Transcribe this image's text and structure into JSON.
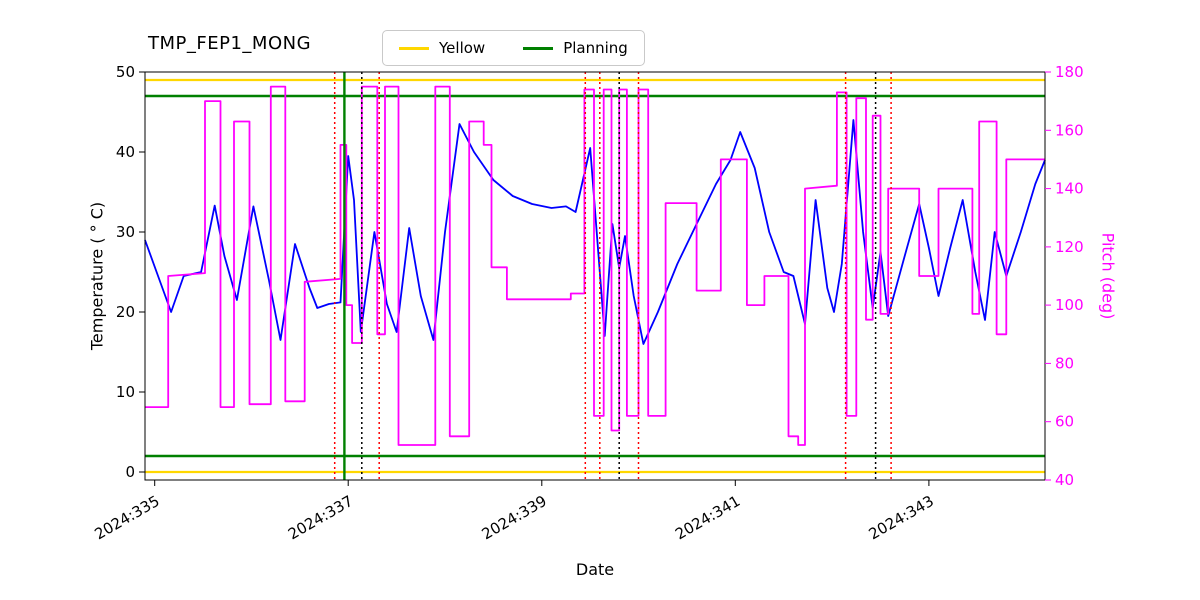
{
  "chart_data": {
    "type": "line",
    "title": "TMP_FEP1_MONG",
    "xlabel": "Date",
    "ylabel_left": "Temperature ( ° C)",
    "ylabel_right": "Pitch (deg)",
    "xlim": [
      334.9,
      344.2
    ],
    "ylim_left": [
      -1,
      50
    ],
    "ylim_right": [
      40,
      180
    ],
    "x_ticks": [
      335,
      337,
      339,
      341,
      343
    ],
    "x_tick_labels": [
      "2024:335",
      "2024:337",
      "2024:339",
      "2024:341",
      "2024:343"
    ],
    "y_ticks_left": [
      0,
      10,
      20,
      30,
      40,
      50
    ],
    "y_ticks_right": [
      40,
      60,
      80,
      100,
      120,
      140,
      160,
      180
    ],
    "legend": [
      {
        "label": "Yellow",
        "color": "#ffd700"
      },
      {
        "label": "Planning",
        "color": "#008000"
      }
    ],
    "colors": {
      "temperature": "#0000ff",
      "pitch": "#ff00ff",
      "yellow_limit": "#ffd700",
      "planning_limit": "#008000",
      "red_marker": "#ff0000",
      "black_marker": "#000000"
    },
    "hlines": [
      {
        "y": 49,
        "color": "#ffd700",
        "width": 2.2,
        "name": "yellow-high-limit"
      },
      {
        "y": 0,
        "color": "#ffd700",
        "width": 2.2,
        "name": "yellow-low-limit"
      },
      {
        "y": 47,
        "color": "#008000",
        "width": 2.6,
        "name": "planning-high-limit"
      },
      {
        "y": 2,
        "color": "#008000",
        "width": 2.6,
        "name": "planning-low-limit"
      }
    ],
    "vlines": [
      {
        "x": 336.86,
        "color": "#ff0000",
        "style": "dotted"
      },
      {
        "x": 336.96,
        "color": "#008000",
        "style": "solid"
      },
      {
        "x": 337.14,
        "color": "#000000",
        "style": "dotted"
      },
      {
        "x": 337.32,
        "color": "#ff0000",
        "style": "dotted"
      },
      {
        "x": 339.45,
        "color": "#ff0000",
        "style": "dotted"
      },
      {
        "x": 339.6,
        "color": "#ff0000",
        "style": "dotted"
      },
      {
        "x": 339.8,
        "color": "#000000",
        "style": "dotted"
      },
      {
        "x": 340.0,
        "color": "#ff0000",
        "style": "dotted"
      },
      {
        "x": 342.14,
        "color": "#ff0000",
        "style": "dotted"
      },
      {
        "x": 342.45,
        "color": "#000000",
        "style": "dotted"
      },
      {
        "x": 342.61,
        "color": "#ff0000",
        "style": "dotted"
      }
    ],
    "series": [
      {
        "name": "temperature",
        "axis": "left",
        "color": "#0000ff",
        "width": 1.8,
        "points": [
          [
            334.9,
            29
          ],
          [
            335.05,
            24
          ],
          [
            335.17,
            20
          ],
          [
            335.3,
            24.5
          ],
          [
            335.48,
            25
          ],
          [
            335.62,
            33.3
          ],
          [
            335.72,
            27
          ],
          [
            335.85,
            21.5
          ],
          [
            336.02,
            33.2
          ],
          [
            336.18,
            24
          ],
          [
            336.3,
            16.5
          ],
          [
            336.45,
            28.5
          ],
          [
            336.6,
            23
          ],
          [
            336.68,
            20.5
          ],
          [
            336.8,
            21
          ],
          [
            336.92,
            21.2
          ],
          [
            337.0,
            39.5
          ],
          [
            337.06,
            34
          ],
          [
            337.13,
            17.5
          ],
          [
            337.27,
            30
          ],
          [
            337.4,
            21
          ],
          [
            337.5,
            17.5
          ],
          [
            337.63,
            30.5
          ],
          [
            337.75,
            22
          ],
          [
            337.88,
            16.5
          ],
          [
            338.0,
            30
          ],
          [
            338.15,
            43.5
          ],
          [
            338.3,
            40
          ],
          [
            338.5,
            36.5
          ],
          [
            338.7,
            34.5
          ],
          [
            338.9,
            33.5
          ],
          [
            339.1,
            33
          ],
          [
            339.25,
            33.2
          ],
          [
            339.35,
            32.5
          ],
          [
            339.5,
            40.5
          ],
          [
            339.6,
            25
          ],
          [
            339.65,
            17
          ],
          [
            339.73,
            31
          ],
          [
            339.8,
            25.5
          ],
          [
            339.86,
            29.5
          ],
          [
            339.95,
            22
          ],
          [
            340.05,
            16
          ],
          [
            340.2,
            20
          ],
          [
            340.4,
            26
          ],
          [
            340.6,
            31
          ],
          [
            340.8,
            36
          ],
          [
            340.95,
            39
          ],
          [
            341.05,
            42.5
          ],
          [
            341.2,
            38
          ],
          [
            341.35,
            30
          ],
          [
            341.5,
            25
          ],
          [
            341.6,
            24.5
          ],
          [
            341.72,
            18.5
          ],
          [
            341.83,
            34
          ],
          [
            341.95,
            23
          ],
          [
            342.02,
            20
          ],
          [
            342.1,
            26
          ],
          [
            342.22,
            44
          ],
          [
            342.32,
            30
          ],
          [
            342.42,
            20.5
          ],
          [
            342.5,
            27.5
          ],
          [
            342.58,
            19.5
          ],
          [
            342.75,
            27
          ],
          [
            342.9,
            33.5
          ],
          [
            343.0,
            28
          ],
          [
            343.1,
            22
          ],
          [
            343.22,
            28
          ],
          [
            343.35,
            34
          ],
          [
            343.48,
            25
          ],
          [
            343.58,
            19
          ],
          [
            343.68,
            30
          ],
          [
            343.8,
            24.5
          ],
          [
            343.95,
            30
          ],
          [
            344.1,
            36
          ],
          [
            344.2,
            39
          ]
        ]
      },
      {
        "name": "pitch",
        "axis": "right",
        "color": "#ff00ff",
        "width": 1.8,
        "points": [
          [
            334.9,
            65
          ],
          [
            335.14,
            65
          ],
          [
            335.14,
            110
          ],
          [
            335.52,
            111
          ],
          [
            335.52,
            170
          ],
          [
            335.68,
            170
          ],
          [
            335.68,
            65
          ],
          [
            335.82,
            65
          ],
          [
            335.82,
            163
          ],
          [
            335.98,
            163
          ],
          [
            335.98,
            66
          ],
          [
            336.2,
            66
          ],
          [
            336.2,
            175
          ],
          [
            336.35,
            175
          ],
          [
            336.35,
            67
          ],
          [
            336.55,
            67
          ],
          [
            336.55,
            108
          ],
          [
            336.92,
            109
          ],
          [
            336.92,
            155
          ],
          [
            336.98,
            155
          ],
          [
            336.98,
            100
          ],
          [
            337.04,
            100
          ],
          [
            337.04,
            87
          ],
          [
            337.14,
            87
          ],
          [
            337.14,
            175
          ],
          [
            337.3,
            175
          ],
          [
            337.3,
            90
          ],
          [
            337.38,
            90
          ],
          [
            337.38,
            175
          ],
          [
            337.52,
            175
          ],
          [
            337.52,
            52
          ],
          [
            337.9,
            52
          ],
          [
            337.9,
            175
          ],
          [
            338.05,
            175
          ],
          [
            338.05,
            55
          ],
          [
            338.25,
            55
          ],
          [
            338.25,
            163
          ],
          [
            338.4,
            163
          ],
          [
            338.4,
            155
          ],
          [
            338.48,
            155
          ],
          [
            338.48,
            113
          ],
          [
            338.64,
            113
          ],
          [
            338.64,
            102
          ],
          [
            339.3,
            102
          ],
          [
            339.3,
            104
          ],
          [
            339.44,
            104
          ],
          [
            339.44,
            174
          ],
          [
            339.54,
            174
          ],
          [
            339.54,
            62
          ],
          [
            339.64,
            62
          ],
          [
            339.64,
            174
          ],
          [
            339.72,
            174
          ],
          [
            339.72,
            57
          ],
          [
            339.8,
            57
          ],
          [
            339.8,
            174
          ],
          [
            339.88,
            174
          ],
          [
            339.88,
            62
          ],
          [
            340.0,
            62
          ],
          [
            340.0,
            174
          ],
          [
            340.1,
            174
          ],
          [
            340.1,
            62
          ],
          [
            340.28,
            62
          ],
          [
            340.28,
            135
          ],
          [
            340.6,
            135
          ],
          [
            340.6,
            105
          ],
          [
            340.85,
            105
          ],
          [
            340.85,
            150
          ],
          [
            341.12,
            150
          ],
          [
            341.12,
            100
          ],
          [
            341.3,
            100
          ],
          [
            341.3,
            110
          ],
          [
            341.55,
            110
          ],
          [
            341.55,
            55
          ],
          [
            341.65,
            55
          ],
          [
            341.65,
            52
          ],
          [
            341.72,
            52
          ],
          [
            341.72,
            140
          ],
          [
            342.05,
            141
          ],
          [
            342.05,
            173
          ],
          [
            342.15,
            173
          ],
          [
            342.15,
            62
          ],
          [
            342.25,
            62
          ],
          [
            342.25,
            171
          ],
          [
            342.35,
            171
          ],
          [
            342.35,
            95
          ],
          [
            342.42,
            95
          ],
          [
            342.42,
            165
          ],
          [
            342.5,
            165
          ],
          [
            342.5,
            97
          ],
          [
            342.58,
            97
          ],
          [
            342.58,
            140
          ],
          [
            342.9,
            140
          ],
          [
            342.9,
            110
          ],
          [
            343.1,
            110
          ],
          [
            343.1,
            140
          ],
          [
            343.45,
            140
          ],
          [
            343.45,
            97
          ],
          [
            343.52,
            97
          ],
          [
            343.52,
            163
          ],
          [
            343.7,
            163
          ],
          [
            343.7,
            90
          ],
          [
            343.8,
            90
          ],
          [
            343.8,
            150
          ],
          [
            344.2,
            150
          ]
        ]
      }
    ]
  }
}
